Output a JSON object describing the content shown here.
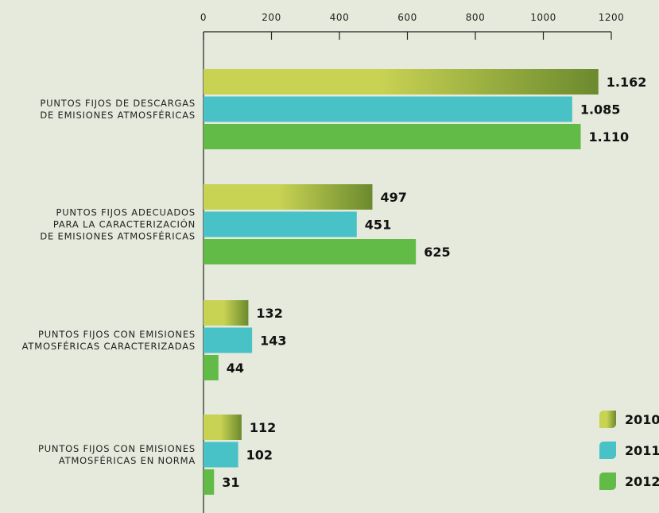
{
  "chart_data": {
    "type": "bar",
    "orientation": "horizontal",
    "categories": [
      [
        "PUNTOS FIJOS DE DESCARGAS",
        "DE EMISIONES ATMOSFÉRICAS"
      ],
      [
        "PUNTOS FIJOS ADECUADOS",
        "PARA LA CARACTERIZACIÓN",
        "DE EMISIONES ATMOSFÉRICAS"
      ],
      [
        "PUNTOS FIJOS CON EMISIONES",
        "ATMOSFÉRICAS CARACTERIZADAS"
      ],
      [
        "PUNTOS FIJOS CON EMISIONES",
        "ATMOSFÉRICAS EN NORMA"
      ]
    ],
    "series": [
      {
        "name": "2010",
        "values": [
          1162,
          497,
          132,
          112
        ],
        "labels": [
          "1.162",
          "497",
          "132",
          "112"
        ],
        "color_start": "#c8d253",
        "color_end": "#6b8a2e"
      },
      {
        "name": "2011",
        "values": [
          1085,
          451,
          143,
          102
        ],
        "labels": [
          "1.085",
          "451",
          "143",
          "102"
        ],
        "color": "#48c2c6"
      },
      {
        "name": "2012",
        "values": [
          1110,
          625,
          44,
          31
        ],
        "labels": [
          "1.110",
          "625",
          "44",
          "31"
        ],
        "color": "#63bb47"
      }
    ],
    "xlim": [
      0,
      1200
    ],
    "xticks": [
      0,
      200,
      400,
      600,
      800,
      1000,
      1200
    ],
    "tick_position": "top",
    "legend_position": "bottom-right",
    "grid": false,
    "title": "",
    "xlabel": "",
    "ylabel": ""
  }
}
